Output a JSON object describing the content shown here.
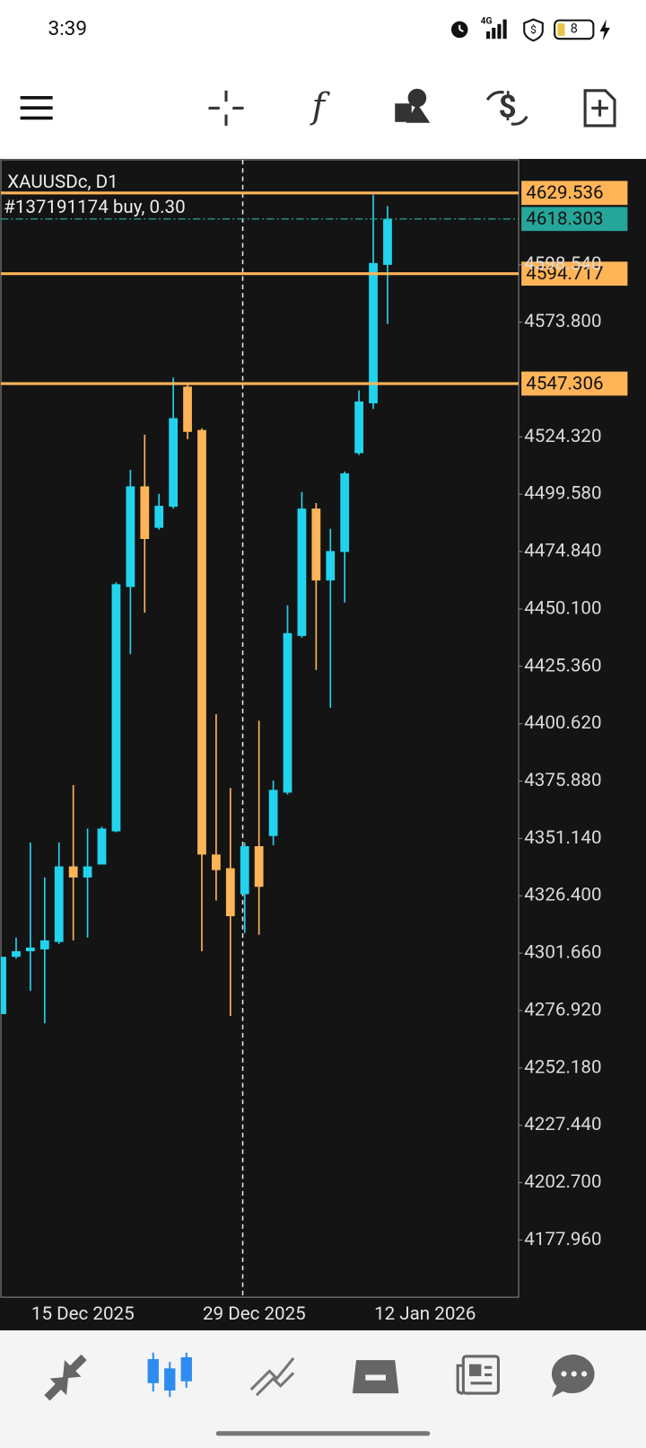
{
  "status_bar": {
    "time": "3:39",
    "network": "4G",
    "battery": "8"
  },
  "toolbar": {
    "indicators": "f"
  },
  "chart_data": {
    "type": "candlestick",
    "symbol": "XAUUSDc, D1",
    "order": "#137191174 buy, 0.30",
    "background": "#141414",
    "up_color": "#22d3ee",
    "down_color": "#ffb458",
    "categories": [
      null,
      null,
      "15 Dec 2025",
      null,
      null,
      null,
      null,
      null,
      null,
      null,
      null,
      null,
      null,
      null,
      "29 Dec 2025",
      null,
      null,
      null,
      null,
      null,
      null,
      null,
      null,
      null,
      null,
      null,
      "12 Jan 2026",
      null
    ],
    "open": [
      4275.4,
      4300.1,
      4302.5,
      4303.3,
      4306.5,
      4339.1,
      4334.3,
      4339.9,
      4354.2,
      4459.6,
      4503.0,
      4485.1,
      4494.2,
      4546.0,
      4527.3,
      4344.2,
      4338.3,
      4327.1,
      4347.8,
      4352.2,
      4370.9,
      4438.5,
      4493.4,
      4462.4,
      4474.7,
      4517.3,
      4538.8,
      4598.5
    ],
    "high": [
      4300.1,
      4308.4,
      4349.4,
      4334.3,
      4349.4,
      4374.1,
      4355.4,
      4356.2,
      4461.6,
      4510.1,
      4525.3,
      4499.8,
      4549.9,
      4546.8,
      4528.0,
      4404.7,
      4372.9,
      4349.4,
      4401.9,
      4376.1,
      4451.7,
      4500.6,
      4495.8,
      4484.7,
      4509.4,
      4544.4,
      4628.7,
      4623.9
    ],
    "low": [
      4275.4,
      4299.3,
      4285.4,
      4271.4,
      4305.7,
      4307.2,
      4308.4,
      4339.9,
      4353.8,
      4430.6,
      4448.5,
      4484.3,
      4493.4,
      4523.3,
      4302.5,
      4324.4,
      4274.6,
      4310.4,
      4309.6,
      4348.2,
      4370.1,
      4437.7,
      4423.8,
      4407.5,
      4452.9,
      4516.5,
      4536.4,
      4573.0
    ],
    "close": [
      4300.1,
      4302.5,
      4304.1,
      4307.2,
      4339.1,
      4334.3,
      4339.1,
      4355.4,
      4460.8,
      4503.0,
      4480.3,
      4494.6,
      4532.4,
      4526.5,
      4344.2,
      4337.5,
      4317.6,
      4347.8,
      4330.3,
      4372.1,
      4439.7,
      4493.4,
      4462.4,
      4475.1,
      4508.6,
      4539.6,
      4599.3,
      4618.3
    ],
    "ylim": [
      4153.3,
      4643.8
    ],
    "yticks": [
      {
        "value": 4598.54,
        "label": "4598.540"
      },
      {
        "value": 4573.8,
        "label": "4573.800"
      },
      {
        "value": 4524.32,
        "label": "4524.320"
      },
      {
        "value": 4499.58,
        "label": "4499.580"
      },
      {
        "value": 4474.84,
        "label": "4474.840"
      },
      {
        "value": 4450.1,
        "label": "4450.100"
      },
      {
        "value": 4425.36,
        "label": "4425.360"
      },
      {
        "value": 4400.62,
        "label": "4400.620"
      },
      {
        "value": 4375.88,
        "label": "4375.880"
      },
      {
        "value": 4351.14,
        "label": "4351.140"
      },
      {
        "value": 4326.4,
        "label": "4326.400"
      },
      {
        "value": 4301.66,
        "label": "4301.660"
      },
      {
        "value": 4276.92,
        "label": "4276.920"
      },
      {
        "value": 4252.18,
        "label": "4252.180"
      },
      {
        "value": 4227.44,
        "label": "4227.440"
      },
      {
        "value": 4202.7,
        "label": "4202.700"
      },
      {
        "value": 4177.96,
        "label": "4177.960"
      }
    ],
    "levels": [
      {
        "value": 4629.536,
        "color": "#ffb458",
        "style": "solid"
      },
      {
        "value": 4618.303,
        "color": "#26a69a",
        "style": "dashdot"
      },
      {
        "value": 4594.717,
        "color": "#ffb458",
        "style": "solid"
      },
      {
        "value": 4547.306,
        "color": "#ffb458",
        "style": "solid"
      }
    ]
  }
}
